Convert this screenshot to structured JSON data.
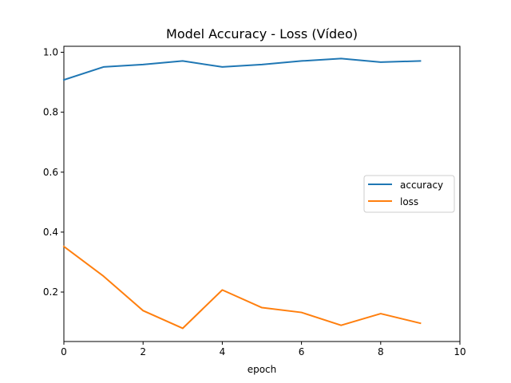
{
  "chart_data": {
    "type": "line",
    "title": "Model Accuracy - Loss (Vídeo)",
    "xlabel": "epoch",
    "ylabel": "",
    "xlim": [
      0,
      10
    ],
    "ylim": [
      0.035,
      1.02
    ],
    "x_ticks": [
      "0",
      "2",
      "4",
      "6",
      "8",
      "10"
    ],
    "y_ticks": [
      "0.2",
      "0.4",
      "0.6",
      "0.8",
      "1.0"
    ],
    "x": [
      0,
      1,
      2,
      3,
      4,
      5,
      6,
      7,
      8,
      9
    ],
    "series": [
      {
        "name": "accuracy",
        "color": "#1f77b4",
        "values": [
          0.908,
          0.951,
          0.959,
          0.971,
          0.951,
          0.959,
          0.971,
          0.979,
          0.967,
          0.971
        ]
      },
      {
        "name": "loss",
        "color": "#ff7f0e",
        "values": [
          0.352,
          0.253,
          0.138,
          0.079,
          0.207,
          0.148,
          0.132,
          0.089,
          0.128,
          0.096
        ]
      }
    ],
    "grid": false,
    "legend_position": "center-right"
  }
}
